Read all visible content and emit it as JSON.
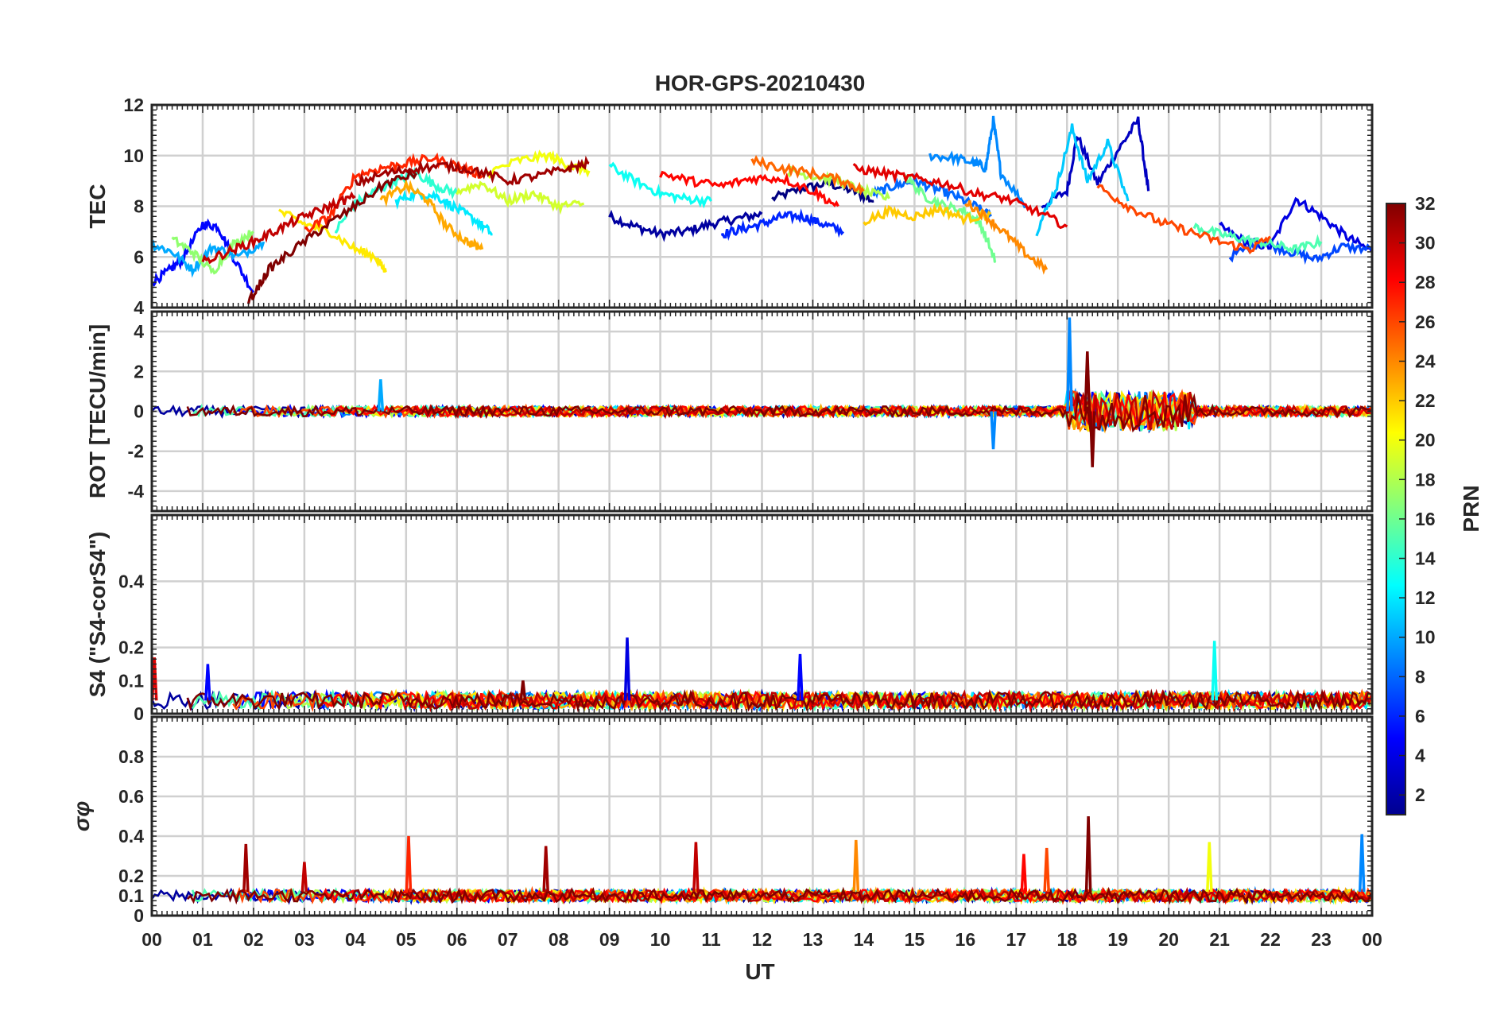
{
  "chart_data": {
    "type": "line",
    "title": "HOR-GPS-20210430",
    "xlabel": "UT",
    "x_ticks": [
      "00",
      "01",
      "02",
      "03",
      "04",
      "05",
      "06",
      "07",
      "08",
      "09",
      "10",
      "11",
      "12",
      "13",
      "14",
      "15",
      "16",
      "17",
      "18",
      "19",
      "20",
      "21",
      "22",
      "23",
      "00"
    ],
    "xlim": [
      0,
      24
    ],
    "grid": true,
    "colorbar": {
      "label": "PRN",
      "range": [
        1,
        32
      ],
      "ticks": [
        "2",
        "4",
        "6",
        "8",
        "10",
        "12",
        "14",
        "16",
        "18",
        "20",
        "22",
        "24",
        "26",
        "28",
        "30",
        "32"
      ],
      "colormap": "jet"
    },
    "panels": [
      {
        "ylabel": "TEC",
        "ylim": [
          4,
          12
        ],
        "y_ticks": [
          "4",
          "6",
          "8",
          "10",
          "12"
        ],
        "series": [
          {
            "prn": 1,
            "x": [
              12.2,
              12.8,
              13.3,
              13.8,
              14.2
            ],
            "y": [
              8.3,
              8.7,
              8.9,
              8.6,
              8.2
            ]
          },
          {
            "prn": 2,
            "x": [
              9.0,
              9.5,
              10.0,
              10.5,
              11.0,
              11.5,
              12.0
            ],
            "y": [
              7.6,
              7.2,
              6.9,
              7.0,
              7.3,
              7.5,
              7.7
            ]
          },
          {
            "prn": 3,
            "x": [
              17.5,
              18.0,
              18.2,
              18.6,
              19.0,
              19.4,
              19.6
            ],
            "y": [
              8.0,
              8.6,
              10.8,
              8.9,
              10.2,
              11.4,
              8.6
            ]
          },
          {
            "prn": 4,
            "x": [
              21.0,
              21.5,
              22.0,
              22.5,
              23.0,
              23.5,
              24.0
            ],
            "y": [
              7.2,
              6.6,
              6.4,
              8.3,
              7.6,
              6.8,
              6.2
            ]
          },
          {
            "prn": 5,
            "x": [
              0.0,
              0.3,
              0.6,
              1.0,
              1.3,
              1.6,
              2.0
            ],
            "y": [
              5.0,
              5.4,
              5.9,
              7.3,
              7.2,
              6.0,
              4.6
            ]
          },
          {
            "prn": 6,
            "x": [
              11.2,
              11.6,
              12.0,
              12.4,
              12.8,
              13.2,
              13.6
            ],
            "y": [
              6.9,
              7.1,
              7.3,
              7.6,
              7.6,
              7.3,
              7.0
            ]
          },
          {
            "prn": 7,
            "x": [
              21.2,
              21.8,
              22.4,
              22.9,
              23.4,
              24.0
            ],
            "y": [
              6.0,
              6.6,
              6.2,
              5.9,
              6.4,
              6.3
            ]
          },
          {
            "prn": 8,
            "x": [
              14.2,
              14.6,
              15.0,
              15.4,
              15.8,
              16.2,
              16.5
            ],
            "y": [
              8.5,
              8.8,
              9.0,
              8.7,
              8.4,
              8.0,
              7.6
            ]
          },
          {
            "prn": 9,
            "x": [
              15.3,
              15.8,
              16.2,
              16.4,
              16.55,
              16.7,
              17.2
            ],
            "y": [
              10.0,
              9.9,
              9.7,
              9.5,
              11.4,
              9.3,
              8.0
            ]
          },
          {
            "prn": 10,
            "x": [
              0.0,
              0.4,
              0.8,
              1.2,
              1.7,
              2.2
            ],
            "y": [
              6.5,
              6.2,
              5.5,
              6.4,
              6.0,
              6.6
            ]
          },
          {
            "prn": 11,
            "x": [
              17.4,
              17.8,
              18.1,
              18.4,
              18.8,
              19.2
            ],
            "y": [
              7.0,
              8.8,
              11.1,
              9.0,
              10.5,
              8.2
            ]
          },
          {
            "prn": 12,
            "x": [
              4.8,
              5.2,
              5.6,
              6.0,
              6.4,
              6.7
            ],
            "y": [
              8.2,
              8.5,
              8.4,
              7.9,
              7.4,
              6.9
            ]
          },
          {
            "prn": 13,
            "x": [
              9.0,
              9.5,
              10.0,
              10.5,
              11.0
            ],
            "y": [
              9.6,
              9.0,
              8.5,
              8.3,
              8.2
            ]
          },
          {
            "prn": 14,
            "x": [
              3.6,
              4.0,
              4.4,
              4.8,
              5.2,
              5.6,
              6.0
            ],
            "y": [
              7.0,
              8.1,
              8.6,
              9.0,
              9.3,
              8.8,
              8.5
            ]
          },
          {
            "prn": 15,
            "x": [
              20.5,
              21.0,
              21.5,
              22.0,
              22.5,
              23.0
            ],
            "y": [
              7.2,
              6.9,
              6.7,
              6.5,
              6.3,
              6.6
            ]
          },
          {
            "prn": 16,
            "x": [
              14.8,
              15.2,
              15.6,
              16.0,
              16.3,
              16.6
            ],
            "y": [
              9.2,
              8.4,
              8.0,
              7.8,
              7.3,
              5.8
            ]
          },
          {
            "prn": 17,
            "x": [
              0.4,
              0.8,
              1.2,
              1.6,
              2.0
            ],
            "y": [
              6.7,
              6.2,
              5.4,
              6.5,
              7.0
            ]
          },
          {
            "prn": 18,
            "x": [
              12.5,
              13.0,
              13.5,
              14.0,
              14.5
            ],
            "y": [
              9.4,
              9.2,
              9.0,
              8.6,
              8.3
            ]
          },
          {
            "prn": 19,
            "x": [
              6.0,
              6.5,
              7.0,
              7.5,
              8.0,
              8.5
            ],
            "y": [
              8.6,
              8.9,
              8.2,
              8.5,
              8.0,
              8.1
            ]
          },
          {
            "prn": 20,
            "x": [
              6.6,
              7.2,
              7.8,
              8.2,
              8.6
            ],
            "y": [
              9.3,
              9.8,
              10.0,
              9.6,
              9.4
            ]
          },
          {
            "prn": 21,
            "x": [
              2.5,
              3.0,
              3.5,
              4.0,
              4.4,
              4.6
            ],
            "y": [
              7.8,
              7.3,
              7.0,
              6.3,
              6.0,
              5.4
            ]
          },
          {
            "prn": 22,
            "x": [
              14.0,
              14.5,
              15.0,
              15.5,
              16.0,
              16.5
            ],
            "y": [
              7.4,
              7.8,
              7.6,
              7.9,
              7.5,
              7.7
            ]
          },
          {
            "prn": 23,
            "x": [
              4.5,
              5.0,
              5.4,
              5.8,
              6.2,
              6.5
            ],
            "y": [
              8.2,
              8.8,
              8.3,
              7.2,
              6.6,
              6.3
            ]
          },
          {
            "prn": 24,
            "x": [
              16.0,
              16.4,
              16.8,
              17.2,
              17.6
            ],
            "y": [
              8.2,
              7.6,
              6.9,
              6.1,
              5.5
            ]
          },
          {
            "prn": 25,
            "x": [
              11.8,
              12.4,
              13.0,
              13.6,
              14.0
            ],
            "y": [
              9.8,
              9.5,
              9.3,
              9.0,
              8.6
            ]
          },
          {
            "prn": 26,
            "x": [
              18.6,
              19.2,
              19.8,
              20.4,
              21.0,
              21.6,
              22.0
            ],
            "y": [
              8.8,
              8.0,
              7.4,
              7.0,
              6.6,
              6.3,
              6.8
            ]
          },
          {
            "prn": 27,
            "x": [
              3.0,
              3.5,
              4.0,
              4.5,
              5.0,
              5.5,
              6.0,
              6.5
            ],
            "y": [
              7.0,
              7.6,
              9.2,
              9.5,
              9.7,
              9.9,
              9.6,
              9.2
            ]
          },
          {
            "prn": 28,
            "x": [
              10.0,
              10.6,
              11.2,
              11.8,
              12.4,
              13.0,
              13.5
            ],
            "y": [
              9.3,
              9.0,
              8.8,
              9.1,
              9.1,
              8.6,
              8.0
            ]
          },
          {
            "prn": 29,
            "x": [
              13.8,
              14.4,
              15.0,
              15.6,
              16.2,
              16.8,
              17.4,
              18.0
            ],
            "y": [
              9.5,
              9.3,
              9.1,
              8.9,
              8.5,
              8.3,
              7.8,
              7.2
            ]
          },
          {
            "prn": 30,
            "x": [
              1.0,
              1.5,
              2.0,
              2.5,
              3.0,
              3.5,
              4.0
            ],
            "y": [
              5.8,
              6.2,
              6.6,
              7.1,
              7.6,
              8.0,
              8.4
            ]
          },
          {
            "prn": 31,
            "x": [
              4.0,
              4.6,
              5.2,
              5.8,
              6.4,
              7.0,
              7.6,
              8.2,
              8.6
            ],
            "y": [
              8.9,
              9.3,
              9.5,
              9.6,
              9.4,
              9.0,
              9.2,
              9.5,
              9.7
            ]
          },
          {
            "prn": 32,
            "x": [
              1.9,
              2.3,
              2.8,
              3.4,
              4.0,
              4.6,
              5.2
            ],
            "y": [
              4.2,
              5.5,
              6.3,
              7.2,
              8.0,
              8.9,
              9.3
            ]
          }
        ]
      },
      {
        "ylabel": "ROT [TECU/min]",
        "ylim": [
          -5,
          5
        ],
        "y_ticks": [
          "-4",
          "-2",
          "0",
          "2",
          "4"
        ],
        "note_spikes": [
          {
            "prn": 9,
            "x": 18.05,
            "y": 4.7
          },
          {
            "prn": 32,
            "x": 18.5,
            "y": -2.8
          },
          {
            "prn": 32,
            "x": 18.4,
            "y": 3.0
          },
          {
            "prn": 9,
            "x": 16.55,
            "y": -1.9
          },
          {
            "prn": 10,
            "x": 4.5,
            "y": 1.6
          }
        ]
      },
      {
        "ylabel": "S4 (\"S4-corS4\")",
        "ylim": [
          0,
          0.6
        ],
        "y_ticks": [
          "0",
          "0.1",
          "0.2",
          "0.4"
        ],
        "note_spikes": [
          {
            "prn": 4,
            "x": 9.35,
            "y": 0.23
          },
          {
            "prn": 13,
            "x": 20.9,
            "y": 0.22
          },
          {
            "prn": 5,
            "x": 12.75,
            "y": 0.18
          },
          {
            "prn": 29,
            "x": 0.05,
            "y": 0.17
          },
          {
            "prn": 5,
            "x": 1.1,
            "y": 0.15
          },
          {
            "prn": 32,
            "x": 7.3,
            "y": 0.1
          }
        ]
      },
      {
        "ylabel": "σφ",
        "ylim": [
          0,
          1
        ],
        "y_ticks": [
          "0",
          "0.1",
          "0.2",
          "0.4",
          "0.6",
          "0.8"
        ],
        "note_spikes": [
          {
            "prn": 32,
            "x": 18.42,
            "y": 0.5
          },
          {
            "prn": 9,
            "x": 23.8,
            "y": 0.41
          },
          {
            "prn": 27,
            "x": 5.05,
            "y": 0.4
          },
          {
            "prn": 24,
            "x": 13.85,
            "y": 0.38
          },
          {
            "prn": 30,
            "x": 10.7,
            "y": 0.37
          },
          {
            "prn": 20,
            "x": 20.8,
            "y": 0.37
          },
          {
            "prn": 31,
            "x": 1.85,
            "y": 0.36
          },
          {
            "prn": 31,
            "x": 7.75,
            "y": 0.35
          },
          {
            "prn": 26,
            "x": 17.6,
            "y": 0.34
          },
          {
            "prn": 28,
            "x": 17.15,
            "y": 0.31
          },
          {
            "prn": 30,
            "x": 3.0,
            "y": 0.27
          }
        ]
      }
    ]
  }
}
